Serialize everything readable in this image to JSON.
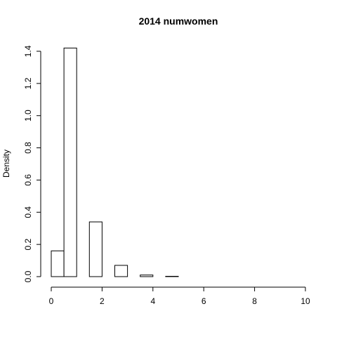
{
  "chart_data": {
    "type": "bar",
    "title": "2014 numwomen",
    "xlabel": "",
    "ylabel": "Density",
    "bin_width": 0.5,
    "bins": [
      {
        "start": 0.0,
        "end": 0.5,
        "density": 0.16
      },
      {
        "start": 0.5,
        "end": 1.0,
        "density": 1.42
      },
      {
        "start": 1.0,
        "end": 1.5,
        "density": 0.0
      },
      {
        "start": 1.5,
        "end": 2.0,
        "density": 0.34
      },
      {
        "start": 2.0,
        "end": 2.5,
        "density": 0.0
      },
      {
        "start": 2.5,
        "end": 3.0,
        "density": 0.07
      },
      {
        "start": 3.0,
        "end": 3.5,
        "density": 0.0
      },
      {
        "start": 3.5,
        "end": 4.0,
        "density": 0.01
      },
      {
        "start": 4.0,
        "end": 4.5,
        "density": 0.0
      },
      {
        "start": 4.5,
        "end": 5.0,
        "density": 0.002
      },
      {
        "start": 5.0,
        "end": 5.5,
        "density": 0.0
      },
      {
        "start": 5.5,
        "end": 6.0,
        "density": 0.0
      },
      {
        "start": 6.0,
        "end": 6.5,
        "density": 0.0
      },
      {
        "start": 6.5,
        "end": 7.0,
        "density": 0.0
      },
      {
        "start": 7.0,
        "end": 7.5,
        "density": 0.0
      },
      {
        "start": 7.5,
        "end": 8.0,
        "density": 0.0
      },
      {
        "start": 8.0,
        "end": 8.5,
        "density": 0.0
      },
      {
        "start": 8.5,
        "end": 9.0,
        "density": 0.0
      },
      {
        "start": 9.0,
        "end": 9.5,
        "density": 0.0
      },
      {
        "start": 9.5,
        "end": 10.0,
        "density": 0.0
      }
    ],
    "xlim": [
      0,
      10
    ],
    "ylim": [
      0,
      1.4
    ],
    "x_ticks": [
      0,
      2,
      4,
      6,
      8,
      10
    ],
    "x_tick_labels": [
      "0",
      "2",
      "4",
      "6",
      "8",
      "10"
    ],
    "y_ticks": [
      0,
      0.2,
      0.4,
      0.6,
      0.8,
      1.0,
      1.2,
      1.4
    ],
    "y_tick_labels": [
      "0.0",
      "0.2",
      "0.4",
      "0.6",
      "0.8",
      "1.0",
      "1.2",
      "1.4"
    ],
    "grid": false,
    "bar_fill": "#ffffff",
    "bar_stroke": "#000000"
  }
}
